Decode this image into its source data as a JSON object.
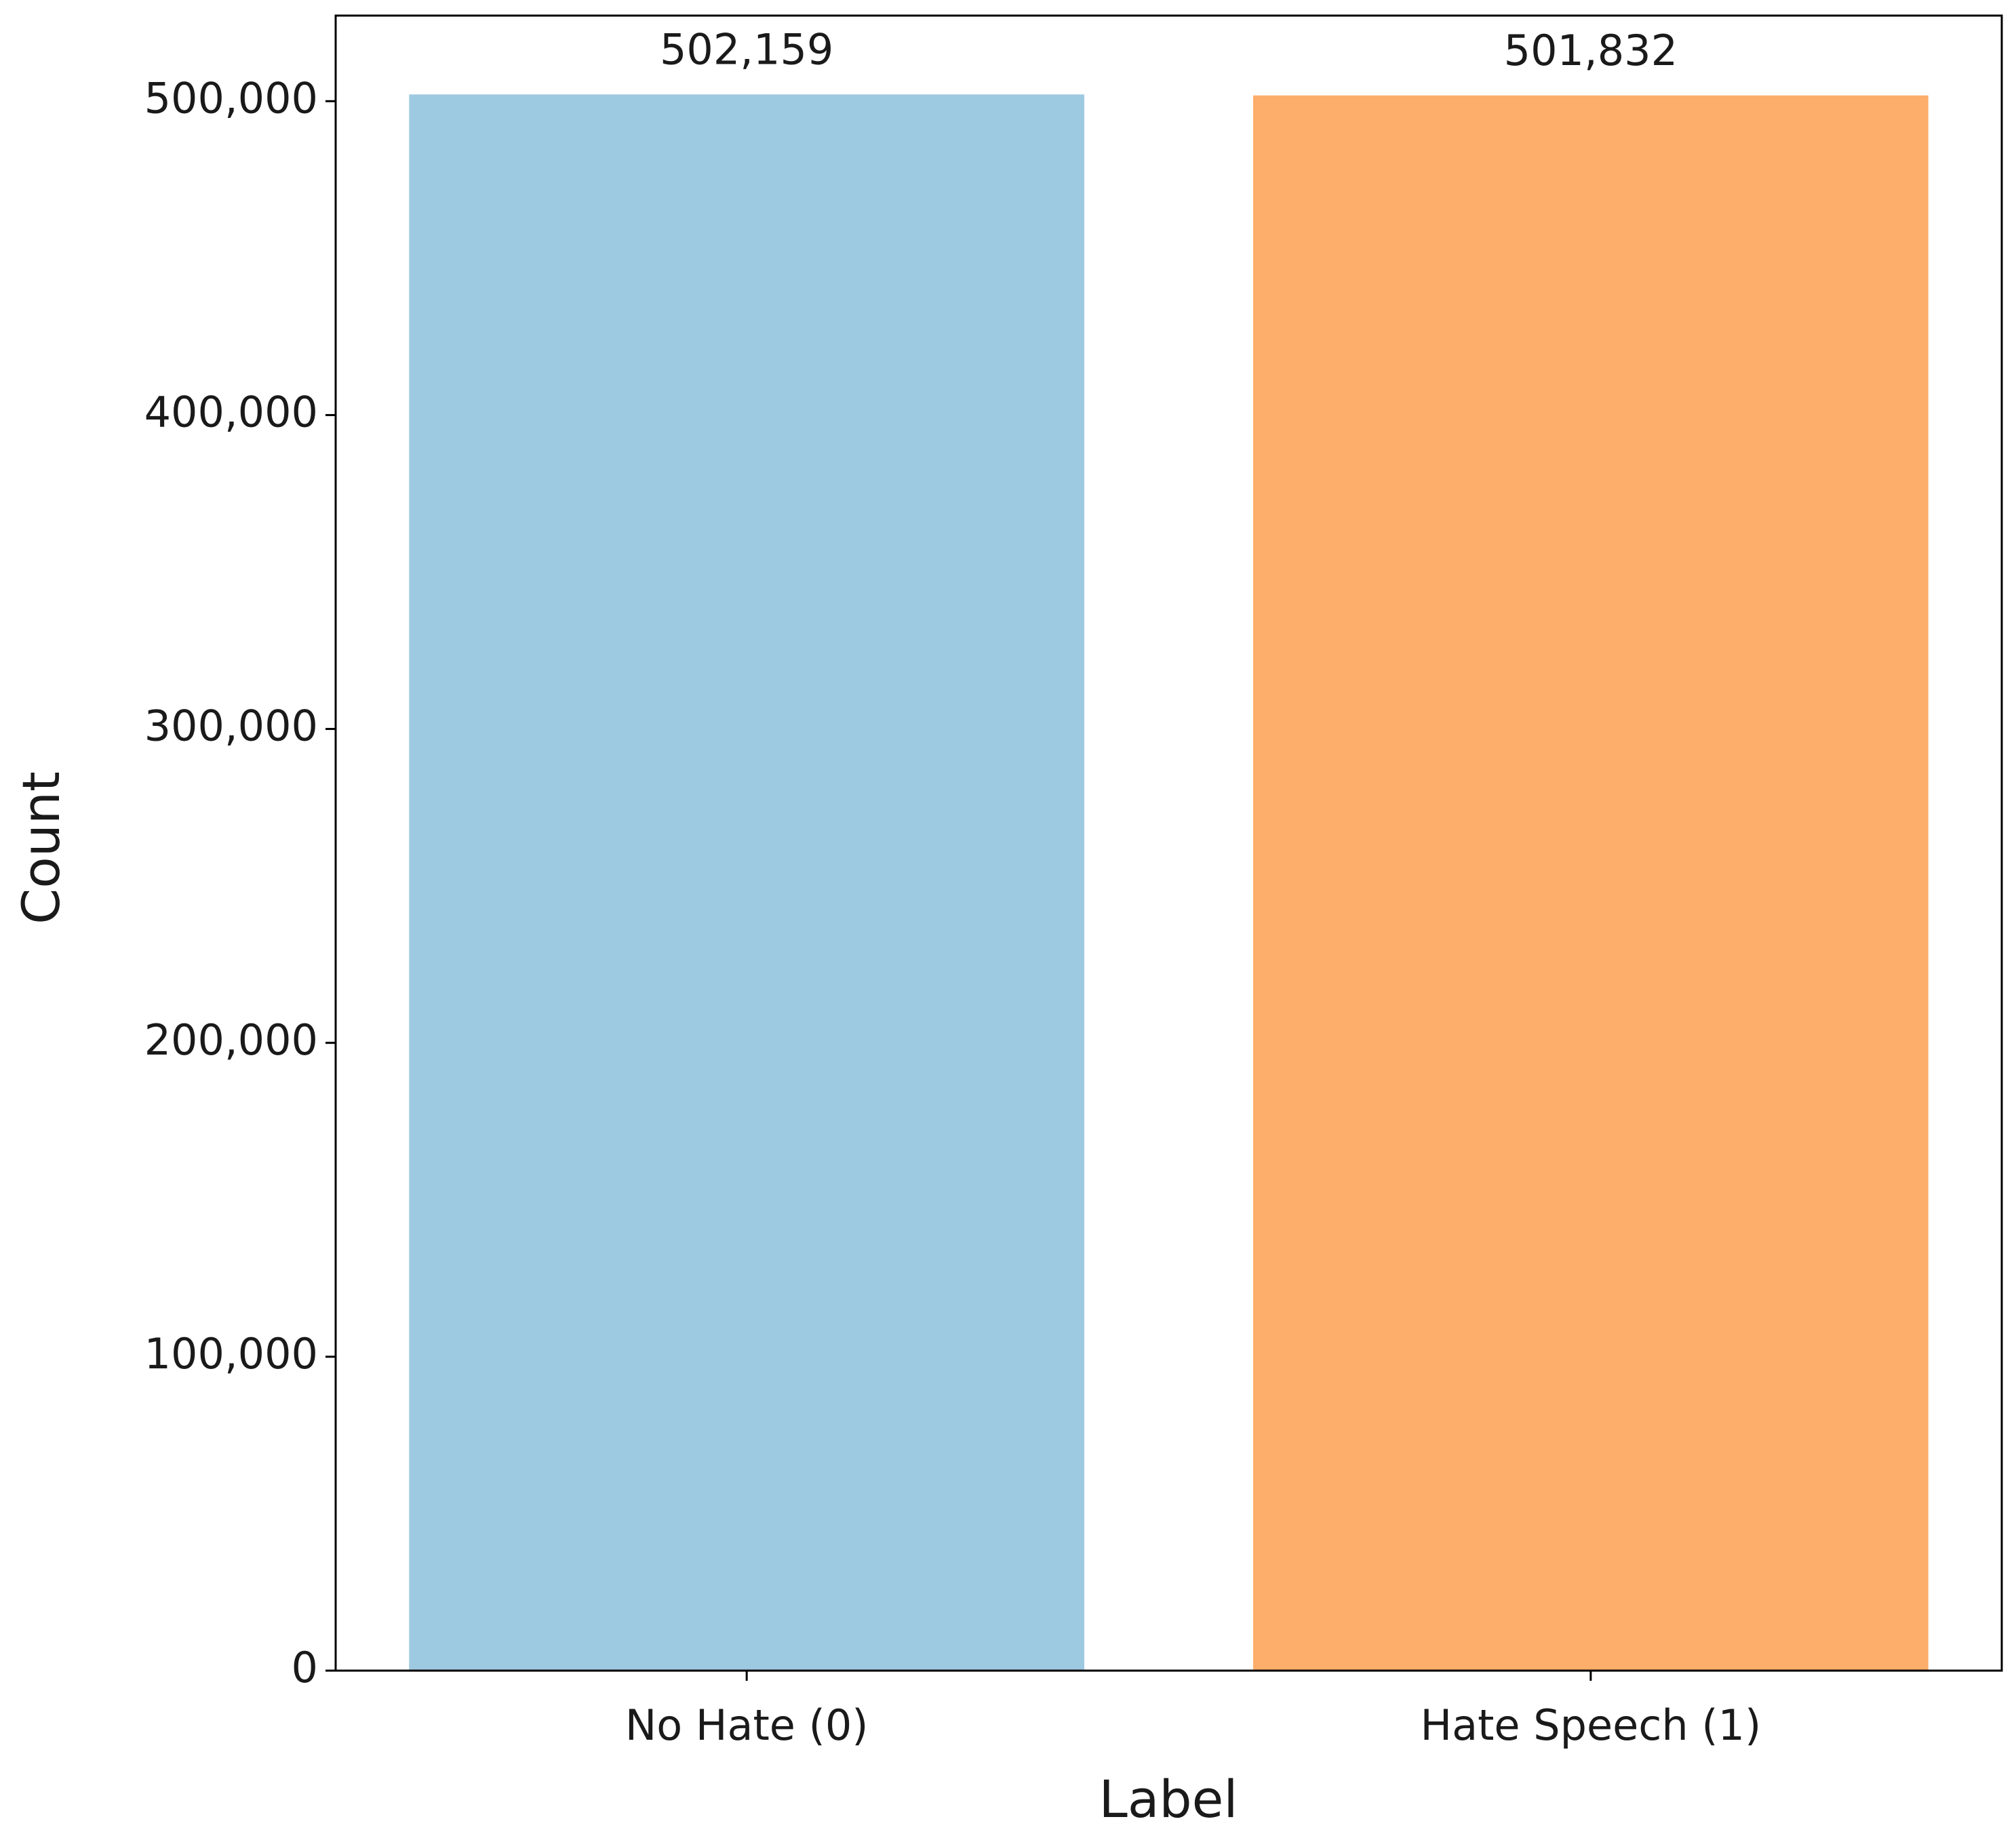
{
  "chart_data": {
    "type": "bar",
    "xlabel": "Label",
    "ylabel": "Count",
    "categories": [
      "No Hate (0)",
      "Hate Speech (1)"
    ],
    "values": [
      502159,
      501832
    ],
    "value_labels": [
      "502,159",
      "501,832"
    ],
    "colors": [
      "#9ecae1",
      "#fdae6b"
    ],
    "ylim": [
      0,
      527267
    ],
    "yticks": [
      0,
      {
        "value": 100000,
        "label": "100,000"
      },
      {
        "value": 200000,
        "label": "200,000"
      },
      {
        "value": 300000,
        "label": "300,000"
      },
      {
        "value": 400000,
        "label": "400,000"
      },
      {
        "value": 500000,
        "label": "500,000"
      }
    ],
    "grid": false
  }
}
